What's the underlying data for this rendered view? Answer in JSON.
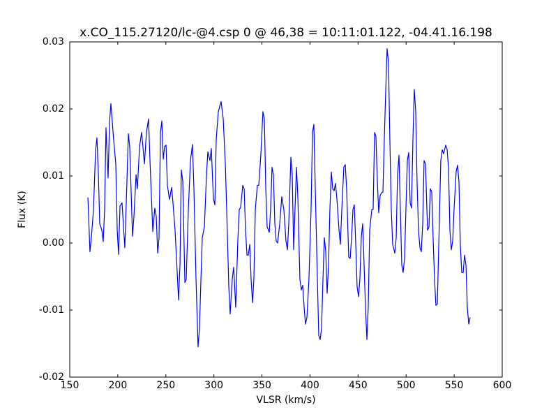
{
  "chart_data": {
    "type": "line",
    "title": "x.CO_115.27120/lc-@4.csp 0 @ 46,38 = 10:11:01.122, -04.41.16.198",
    "x_label": "VLSR (km/s)",
    "y_label": "Flux (K)",
    "xlim": [
      150,
      600
    ],
    "ylim": [
      -0.02,
      0.03
    ],
    "xticks": [
      150,
      200,
      250,
      300,
      350,
      400,
      450,
      500,
      550,
      600
    ],
    "yticks": [
      -0.02,
      -0.01,
      {
        "value": 0,
        "label": "0.00"
      },
      0.01,
      0.02,
      0.03
    ],
    "grid": false,
    "color": "#0000ff",
    "x": [
      168.9,
      171.0,
      172.5,
      174.7,
      176.9,
      178.3,
      179.8,
      181.2,
      183.4,
      184.8,
      186.3,
      187.7,
      189.9,
      191.4,
      192.8,
      195.7,
      197.9,
      199.4,
      200.8,
      202.3,
      204.4,
      207.3,
      209.5,
      211.0,
      212.4,
      215.3,
      216.8,
      219.0,
      220.4,
      222.6,
      224.8,
      227.7,
      229.8,
      232.0,
      233.5,
      236.4,
      238.5,
      240.0,
      241.5,
      242.9,
      244.4,
      245.8,
      247.3,
      248.7,
      250.2,
      251.6,
      253.8,
      256.0,
      257.4,
      259.6,
      261.8,
      263.2,
      264.7,
      266.1,
      267.6,
      269.8,
      271.2,
      273.4,
      275.6,
      277.7,
      279.2,
      281.4,
      283.5,
      285.0,
      286.5,
      287.9,
      290.1,
      292.3,
      293.7,
      295.9,
      297.3,
      299.5,
      301.0,
      302.4,
      304.6,
      307.5,
      309.7,
      311.9,
      313.3,
      315.5,
      316.9,
      319.1,
      320.6,
      322.7,
      324.9,
      326.4,
      327.8,
      330.0,
      331.5,
      332.9,
      334.4,
      335.8,
      337.3,
      338.7,
      340.2,
      341.6,
      343.1,
      345.2,
      346.7,
      348.9,
      351.0,
      352.5,
      354.0,
      355.4,
      357.6,
      359.0,
      360.5,
      361.9,
      363.4,
      364.8,
      366.3,
      368.5,
      370.6,
      372.8,
      375.0,
      376.5,
      377.9,
      380.1,
      381.5,
      383.0,
      384.4,
      385.9,
      387.3,
      389.5,
      391.0,
      392.4,
      393.9,
      395.3,
      396.8,
      398.9,
      401.1,
      402.6,
      404.0,
      405.5,
      407.7,
      409.1,
      410.6,
      412.0,
      413.5,
      414.9,
      416.4,
      417.8,
      419.3,
      420.7,
      422.2,
      423.6,
      425.1,
      426.5,
      428.0,
      430.2,
      431.6,
      433.1,
      435.2,
      436.7,
      438.1,
      440.3,
      441.8,
      443.2,
      444.7,
      446.1,
      447.6,
      449.0,
      450.5,
      451.9,
      453.4,
      454.8,
      456.3,
      457.7,
      459.2,
      460.6,
      462.1,
      464.3,
      465.7,
      467.2,
      468.6,
      470.1,
      471.5,
      473.0,
      474.4,
      475.9,
      477.3,
      478.8,
      480.2,
      481.7,
      483.1,
      484.6,
      486.0,
      488.2,
      489.7,
      491.1,
      492.6,
      494.0,
      495.5,
      496.9,
      498.4,
      499.8,
      501.3,
      502.7,
      504.2,
      505.6,
      507.1,
      508.5,
      510.0,
      511.4,
      512.9,
      514.4,
      515.8,
      517.3,
      518.7,
      520.2,
      522.3,
      523.8,
      525.2,
      526.7,
      528.1,
      529.6,
      531.0,
      532.5,
      534.0,
      536.1,
      537.6,
      539.0,
      541.2,
      542.7,
      544.1,
      545.6,
      547.0,
      548.5,
      549.9,
      552.1,
      553.5,
      555.0,
      556.4,
      557.9,
      559.4,
      560.8,
      562.3,
      563.7,
      565.2,
      566.6
    ],
    "values": [
      0.0068,
      -0.0013,
      0.0008,
      0.005,
      0.0139,
      0.0157,
      0.0102,
      0.0029,
      0.0019,
      0.0002,
      0.005,
      0.0172,
      0.0097,
      0.018,
      0.0208,
      0.0154,
      0.0118,
      0.0019,
      -0.0017,
      0.0055,
      0.006,
      -0.0007,
      0.0092,
      0.0163,
      0.0144,
      0.001,
      0.004,
      0.0102,
      0.0081,
      0.0144,
      0.0165,
      0.0118,
      0.0165,
      0.0185,
      0.0123,
      0.0017,
      0.0052,
      0.004,
      -0.0015,
      0.0008,
      0.0165,
      0.0182,
      0.0125,
      0.0144,
      0.0146,
      0.0086,
      0.0065,
      0.0083,
      0.006,
      0.0019,
      -0.0044,
      -0.0085,
      -0.0033,
      0.0109,
      0.0092,
      -0.0059,
      -0.0054,
      0.005,
      0.0123,
      0.0147,
      0.0081,
      -0.0054,
      -0.0155,
      -0.0127,
      -0.0054,
      0.0008,
      0.0024,
      0.0102,
      0.0136,
      0.0123,
      0.0141,
      0.0066,
      0.0057,
      0.0154,
      0.0196,
      0.0211,
      0.0185,
      0.0118,
      0.005,
      -0.0065,
      -0.0106,
      -0.0054,
      -0.0036,
      -0.0096,
      0.0003,
      0.005,
      0.0053,
      0.0086,
      0.0081,
      0.0019,
      -0.0018,
      -0.0018,
      -0.0002,
      -0.0054,
      -0.0089,
      -0.0054,
      0.005,
      0.0086,
      0.0086,
      0.0133,
      0.0196,
      0.0185,
      0.0081,
      0.0024,
      0.0016,
      0.005,
      0.0113,
      0.0102,
      0.0029,
      0.0003,
      0,
      0.0029,
      0.0069,
      0.005,
      0.0003,
      -0.001,
      0.0029,
      0.0128,
      0.0102,
      -0.001,
      0.005,
      0.0113,
      0.0071,
      -0.0054,
      -0.007,
      -0.0063,
      -0.0096,
      -0.0121,
      -0.0111,
      -0.0054,
      0.005,
      0.0165,
      0.0177,
      0.0081,
      -0.0054,
      -0.0138,
      -0.0144,
      -0.0127,
      -0.0054,
      0.0008,
      -0.0013,
      -0.0075,
      -0.0033,
      0.005,
      0.0106,
      0.0081,
      0.0078,
      0.0089,
      0.0066,
      0.0019,
      -0.0002,
      0.005,
      0.0113,
      0.0117,
      0.0081,
      -0.0021,
      -0.0023,
      0.0006,
      0.005,
      0.0057,
      -0.0002,
      -0.0065,
      -0.008,
      -0.0054,
      0.001,
      0.0029,
      -0.0033,
      -0.0096,
      -0.0144,
      -0.0096,
      0.0019,
      0.005,
      0.005,
      0.0165,
      0.0159,
      0.0092,
      0.0045,
      0.0071,
      0.0075,
      0.0076,
      0.0154,
      0.0227,
      0.029,
      0.0269,
      0.0154,
      0.005,
      -0.0002,
      -0.0015,
      0.0008,
      0.0102,
      0.0131,
      0.005,
      -0.0033,
      -0.0044,
      -0.0023,
      0.005,
      0.0123,
      0.0135,
      0.006,
      0.0052,
      0.0154,
      0.0229,
      0.0196,
      0.0092,
      0.0019,
      -0.0007,
      -0.0013,
      0.0029,
      0.0123,
      0.0118,
      0.0019,
      0.0024,
      0.0081,
      0.0076,
      0.0008,
      -0.0054,
      -0.0093,
      -0.0091,
      -0.0002,
      0.0123,
      0.0139,
      0.0133,
      0.0146,
      0.0139,
      0.0113,
      0.0019,
      -0.001,
      0.0003,
      0.005,
      0.0107,
      0.0116,
      0.0092,
      -0.0002,
      -0.0044,
      -0.0044,
      -0.0018,
      -0.0033,
      -0.0096,
      -0.0121,
      -0.0111
    ]
  }
}
